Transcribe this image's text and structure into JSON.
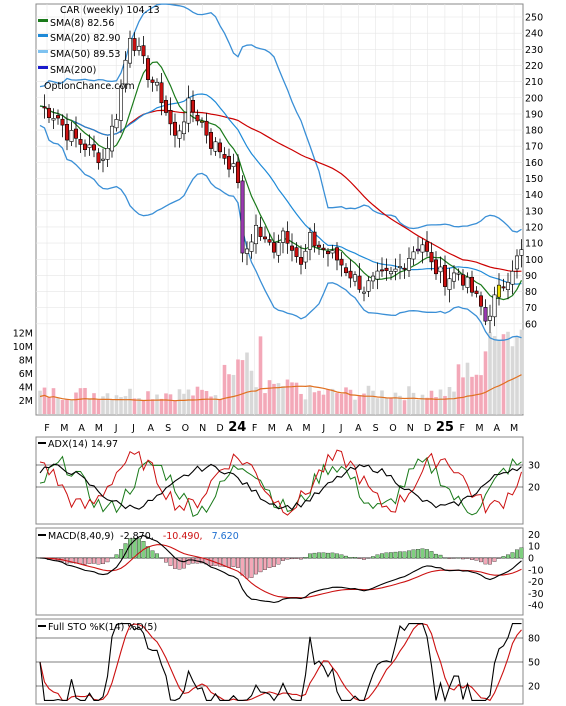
{
  "chart_data": [
    {
      "type": "candlestick",
      "panel": "price",
      "title": "CAR (weekly) 104.13",
      "watermark": "OptionChance.com",
      "legend": [
        {
          "label": "SMA(8) 82.56",
          "color": "#1a7a1a"
        },
        {
          "label": "SMA(20) 82.90",
          "color": "#1e8ad8"
        },
        {
          "label": "SMA(50) 89.53",
          "color": "#7ec2f0"
        },
        {
          "label": "SMA(200)",
          "color": "#1a1acc"
        }
      ],
      "y_ticks": [
        "250",
        "240",
        "230",
        "220",
        "210",
        "200",
        "190",
        "180",
        "170",
        "160",
        "150",
        "140",
        "130",
        "120",
        "110",
        "100",
        "90",
        "80",
        "70",
        "60"
      ],
      "ylim": [
        50,
        255
      ],
      "x_labels": [
        "F",
        "M",
        "A",
        "M",
        "J",
        "J",
        "A",
        "S",
        "O",
        "N",
        "D",
        "24",
        "F",
        "M",
        "A",
        "M",
        "J",
        "J",
        "A",
        "S",
        "O",
        "N",
        "D",
        "25",
        "F",
        "M",
        "A",
        "M"
      ],
      "close_anchors": [
        [
          0,
          195
        ],
        [
          4,
          188
        ],
        [
          6,
          178
        ],
        [
          10,
          170
        ],
        [
          14,
          162
        ],
        [
          17,
          190
        ],
        [
          20,
          240
        ],
        [
          24,
          215
        ],
        [
          27,
          200
        ],
        [
          30,
          175
        ],
        [
          33,
          195
        ],
        [
          36,
          185
        ],
        [
          38,
          172
        ],
        [
          40,
          168
        ],
        [
          42,
          160
        ],
        [
          44,
          150
        ],
        [
          45,
          100
        ],
        [
          48,
          120
        ],
        [
          50,
          110
        ],
        [
          52,
          108
        ],
        [
          54,
          118
        ],
        [
          56,
          110
        ],
        [
          58,
          95
        ],
        [
          60,
          112
        ],
        [
          63,
          106
        ],
        [
          66,
          100
        ],
        [
          70,
          88
        ],
        [
          72,
          82
        ],
        [
          75,
          88
        ],
        [
          78,
          90
        ],
        [
          80,
          95
        ],
        [
          83,
          106
        ],
        [
          85,
          110
        ],
        [
          87,
          96
        ],
        [
          90,
          88
        ],
        [
          93,
          92
        ],
        [
          96,
          80
        ],
        [
          98,
          70
        ],
        [
          99,
          62
        ],
        [
          101,
          75
        ],
        [
          103,
          85
        ],
        [
          105,
          96
        ],
        [
          107,
          104
        ]
      ],
      "series_colors": {
        "sma8": "#1a7a1a",
        "sma20": "#1e8ad8",
        "sma50": "#cc0000",
        "bollinger": "#3a8fd6",
        "bollinger_gap": "#f0e000",
        "candle_up": "#ffffff",
        "candle_down": "#cc1111",
        "candle_gap": "#f0e000",
        "candle_purple": "#9a3ab0"
      }
    },
    {
      "type": "bar",
      "panel": "volume",
      "y_ticks": [
        "12M",
        "10M",
        "8M",
        "6M",
        "4M",
        "2M"
      ],
      "ylim": [
        0,
        12
      ],
      "sma_color": "#e07020",
      "bar_colors": {
        "up": "#d8d8d8",
        "down": "#f3a8b8"
      }
    },
    {
      "type": "line",
      "panel": "adx",
      "label": "ADX(14) 14.97",
      "y_ticks": [
        "30",
        "20"
      ],
      "ylim": [
        5,
        40
      ],
      "colors": {
        "adx": "#000000",
        "plus_di": "#1a7a1a",
        "minus_di": "#cc1111"
      }
    },
    {
      "type": "bar",
      "panel": "macd",
      "label": "MACD(8,40,9)",
      "values_text": [
        "-2.870,",
        "-10.490,",
        "7.620"
      ],
      "values_colors": [
        "#000000",
        "#cc1111",
        "#1e6fd0"
      ],
      "y_ticks": [
        "20",
        "10",
        "0",
        "-10",
        "-20",
        "-30",
        "-40"
      ],
      "ylim": [
        -45,
        22
      ],
      "colors": {
        "macd": "#000000",
        "signal": "#cc1111",
        "hist_pos": "#7fcf7f",
        "hist_neg": "#f3a8b8"
      }
    },
    {
      "type": "line",
      "panel": "stochastic",
      "label": "Full STO %K(14) %D(5)",
      "y_ticks": [
        "80",
        "50",
        "20"
      ],
      "ylim": [
        0,
        100
      ],
      "colors": {
        "k": "#000000",
        "d": "#cc1111"
      }
    }
  ]
}
